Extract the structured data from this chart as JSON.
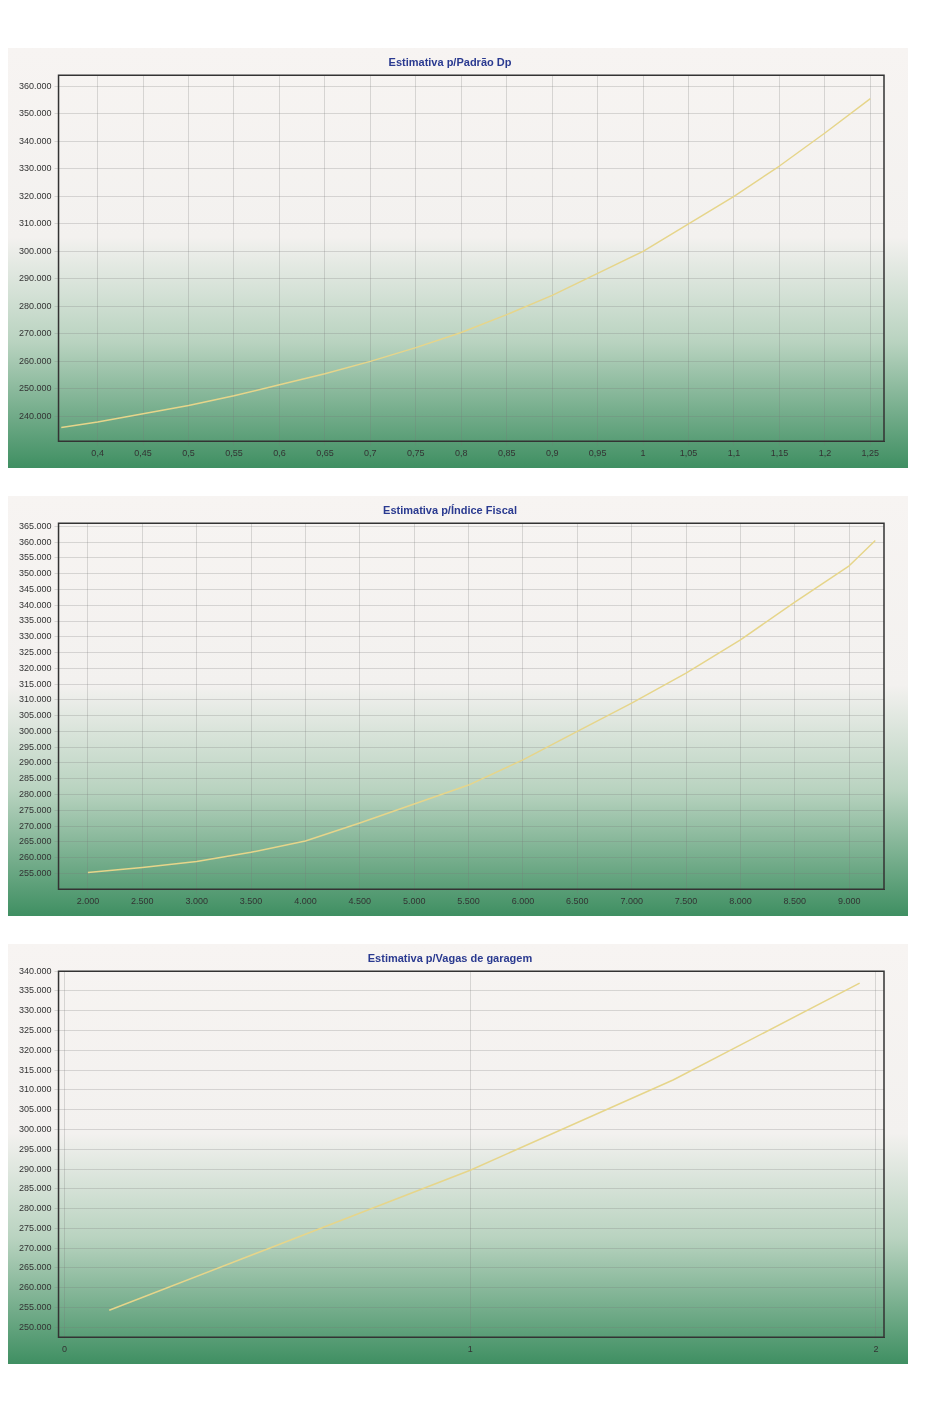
{
  "chart_data": [
    {
      "type": "line",
      "title": "Estimativa p/Padrão Dp",
      "x": [
        0.36,
        0.4,
        0.45,
        0.5,
        0.55,
        0.6,
        0.65,
        0.7,
        0.75,
        0.8,
        0.85,
        0.9,
        0.95,
        1.0,
        1.05,
        1.1,
        1.15,
        1.2,
        1.25
      ],
      "series": [
        {
          "color": "#e6d58a",
          "values": [
            236000,
            238000,
            241000,
            244000,
            247500,
            251500,
            255500,
            260000,
            265000,
            270500,
            277000,
            284000,
            292000,
            300000,
            310000,
            320000,
            331000,
            343000,
            355500
          ]
        }
      ],
      "xlim": [
        0.357,
        1.265
      ],
      "ylim": [
        231000,
        364000
      ],
      "xticks": [
        {
          "value": 0.4,
          "label": "0,4"
        },
        {
          "value": 0.45,
          "label": "0,45"
        },
        {
          "value": 0.5,
          "label": "0,5"
        },
        {
          "value": 0.55,
          "label": "0,55"
        },
        {
          "value": 0.6,
          "label": "0,6"
        },
        {
          "value": 0.65,
          "label": "0,65"
        },
        {
          "value": 0.7,
          "label": "0,7"
        },
        {
          "value": 0.75,
          "label": "0,75"
        },
        {
          "value": 0.8,
          "label": "0,8"
        },
        {
          "value": 0.85,
          "label": "0,85"
        },
        {
          "value": 0.9,
          "label": "0,9"
        },
        {
          "value": 0.95,
          "label": "0,95"
        },
        {
          "value": 1,
          "label": "1"
        },
        {
          "value": 1.05,
          "label": "1,05"
        },
        {
          "value": 1.1,
          "label": "1,1"
        },
        {
          "value": 1.15,
          "label": "1,15"
        },
        {
          "value": 1.2,
          "label": "1,2"
        },
        {
          "value": 1.25,
          "label": "1,25"
        }
      ],
      "yticks": [
        {
          "value": 240000,
          "label": "240.000"
        },
        {
          "value": 250000,
          "label": "250.000"
        },
        {
          "value": 260000,
          "label": "260.000"
        },
        {
          "value": 270000,
          "label": "270.000"
        },
        {
          "value": 280000,
          "label": "280.000"
        },
        {
          "value": 290000,
          "label": "290.000"
        },
        {
          "value": 300000,
          "label": "300.000"
        },
        {
          "value": 310000,
          "label": "310.000"
        },
        {
          "value": 320000,
          "label": "320.000"
        },
        {
          "value": 330000,
          "label": "330.000"
        },
        {
          "value": 340000,
          "label": "340.000"
        },
        {
          "value": 350000,
          "label": "350.000"
        },
        {
          "value": 360000,
          "label": "360.000"
        }
      ],
      "grid": true
    },
    {
      "type": "line",
      "title": "Estimativa p/Índice Fiscal",
      "x": [
        2000,
        2500,
        3000,
        3500,
        4000,
        4500,
        5000,
        5500,
        6000,
        6500,
        7000,
        7500,
        8000,
        8500,
        9000,
        9240
      ],
      "series": [
        {
          "color": "#e6d58a",
          "values": [
            255300,
            256900,
            258800,
            261700,
            265300,
            271000,
            277000,
            283000,
            291000,
            300000,
            309000,
            318500,
            329000,
            341000,
            352500,
            360500
          ]
        }
      ],
      "xlim": [
        1730,
        9320
      ],
      "ylim": [
        250000,
        366000
      ],
      "xticks": [
        {
          "value": 2000,
          "label": "2.000"
        },
        {
          "value": 2500,
          "label": "2.500"
        },
        {
          "value": 3000,
          "label": "3.000"
        },
        {
          "value": 3500,
          "label": "3.500"
        },
        {
          "value": 4000,
          "label": "4.000"
        },
        {
          "value": 4500,
          "label": "4.500"
        },
        {
          "value": 5000,
          "label": "5.000"
        },
        {
          "value": 5500,
          "label": "5.500"
        },
        {
          "value": 6000,
          "label": "6.000"
        },
        {
          "value": 6500,
          "label": "6.500"
        },
        {
          "value": 7000,
          "label": "7.000"
        },
        {
          "value": 7500,
          "label": "7.500"
        },
        {
          "value": 8000,
          "label": "8.000"
        },
        {
          "value": 8500,
          "label": "8.500"
        },
        {
          "value": 9000,
          "label": "9.000"
        }
      ],
      "yticks": [
        {
          "value": 255000,
          "label": "255.000"
        },
        {
          "value": 260000,
          "label": "260.000"
        },
        {
          "value": 265000,
          "label": "265.000"
        },
        {
          "value": 270000,
          "label": "270.000"
        },
        {
          "value": 275000,
          "label": "275.000"
        },
        {
          "value": 280000,
          "label": "280.000"
        },
        {
          "value": 285000,
          "label": "285.000"
        },
        {
          "value": 290000,
          "label": "290.000"
        },
        {
          "value": 295000,
          "label": "295.000"
        },
        {
          "value": 300000,
          "label": "300.000"
        },
        {
          "value": 305000,
          "label": "305.000"
        },
        {
          "value": 310000,
          "label": "310.000"
        },
        {
          "value": 315000,
          "label": "315.000"
        },
        {
          "value": 320000,
          "label": "320.000"
        },
        {
          "value": 325000,
          "label": "325.000"
        },
        {
          "value": 330000,
          "label": "330.000"
        },
        {
          "value": 335000,
          "label": "335.000"
        },
        {
          "value": 340000,
          "label": "340.000"
        },
        {
          "value": 345000,
          "label": "345.000"
        },
        {
          "value": 350000,
          "label": "350.000"
        },
        {
          "value": 355000,
          "label": "355.000"
        },
        {
          "value": 360000,
          "label": "360.000"
        },
        {
          "value": 365000,
          "label": "365.000"
        }
      ],
      "grid": true
    },
    {
      "type": "line",
      "title": "Estimativa p/Vagas de garagem",
      "x": [
        0.11,
        0.5,
        1,
        1.5,
        1.96
      ],
      "series": [
        {
          "color": "#e6d58a",
          "values": [
            254300,
            269800,
            289700,
            312500,
            337000
          ]
        }
      ],
      "xlim": [
        -0.015,
        2.02
      ],
      "ylim": [
        247500,
        340000
      ],
      "xticks": [
        0,
        1,
        2
      ],
      "yticks": [
        {
          "value": 250000,
          "label": "250.000"
        },
        {
          "value": 255000,
          "label": "255.000"
        },
        {
          "value": 260000,
          "label": "260.000"
        },
        {
          "value": 265000,
          "label": "265.000"
        },
        {
          "value": 270000,
          "label": "270.000"
        },
        {
          "value": 275000,
          "label": "275.000"
        },
        {
          "value": 280000,
          "label": "280.000"
        },
        {
          "value": 285000,
          "label": "285.000"
        },
        {
          "value": 290000,
          "label": "290.000"
        },
        {
          "value": 295000,
          "label": "295.000"
        },
        {
          "value": 300000,
          "label": "300.000"
        },
        {
          "value": 305000,
          "label": "305.000"
        },
        {
          "value": 310000,
          "label": "310.000"
        },
        {
          "value": 315000,
          "label": "315.000"
        },
        {
          "value": 320000,
          "label": "320.000"
        },
        {
          "value": 325000,
          "label": "325.000"
        },
        {
          "value": 330000,
          "label": "330.000"
        },
        {
          "value": 335000,
          "label": "335.000"
        },
        {
          "value": 340000,
          "label": "340.000"
        }
      ],
      "grid": true
    }
  ]
}
